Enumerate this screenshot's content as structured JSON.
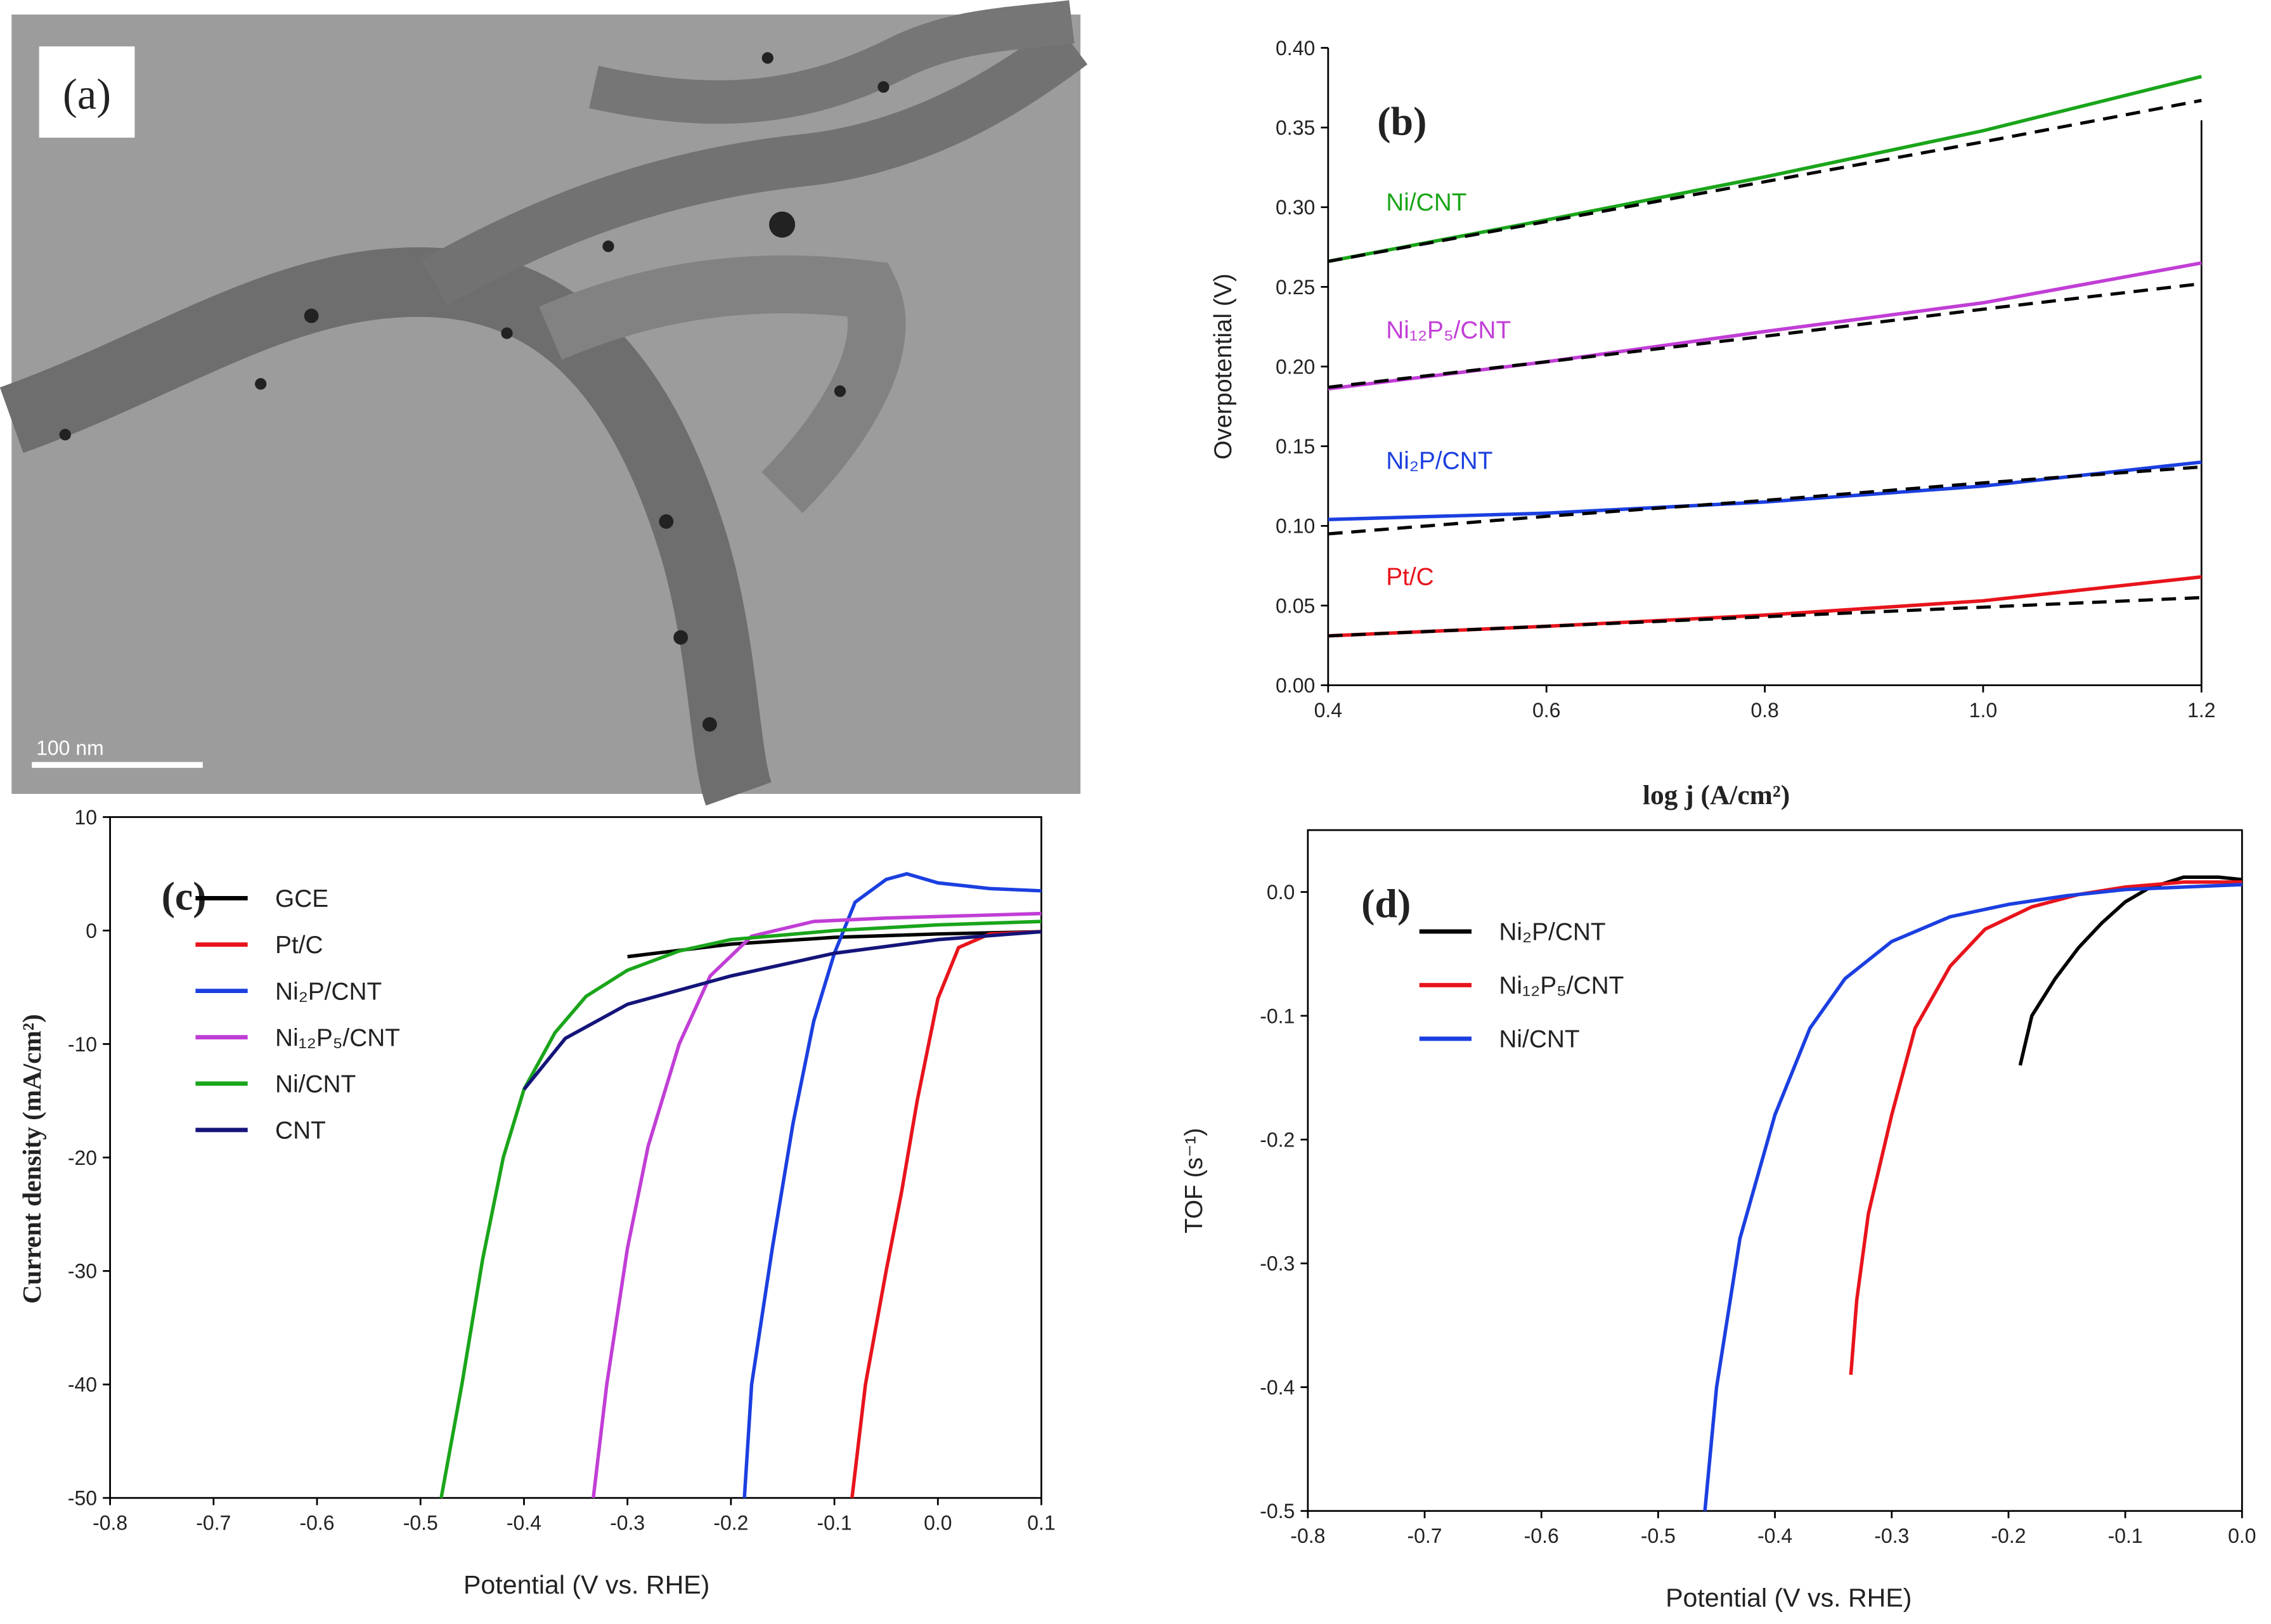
{
  "chart_data": [
    {
      "type": "image",
      "label": "(a)",
      "scale_bar": "100 nm"
    },
    {
      "type": "line",
      "label": "(b)",
      "xlabel": "log j (A/cm²)",
      "ylabel": "Overpotential (V)",
      "xlim": [
        0.4,
        1.2
      ],
      "ylim": [
        0,
        0.4
      ],
      "xticks": [
        0.4,
        0.6,
        0.8,
        {
          "value": 1,
          "label": "1.0"
        },
        1.2
      ],
      "yticks": [
        {
          "value": 0,
          "label": "0.00"
        },
        0.05,
        {
          "value": 0.1,
          "label": "0.10"
        },
        0.15,
        {
          "value": 0.2,
          "label": "0.20"
        },
        0.25,
        {
          "value": 0.3,
          "label": "0.30"
        },
        0.35,
        {
          "value": 0.4,
          "label": "0.40"
        }
      ],
      "legend": "inline",
      "x": [
        0.4,
        0.6,
        0.8,
        1.0,
        1.2
      ],
      "series": [
        {
          "name": "Ni/CNT",
          "color": "#1aa51a",
          "values": [
            0.266,
            0.292,
            0.319,
            0.348,
            0.382
          ]
        },
        {
          "color": "#000000",
          "dashed": true,
          "values": [
            0.266,
            0.291,
            0.316,
            0.341,
            0.367
          ]
        },
        {
          "name": "Ni₁₂P₅/CNT",
          "color": "#c13ed6",
          "values": [
            0.186,
            0.203,
            0.222,
            0.24,
            0.265
          ]
        },
        {
          "color": "#000000",
          "dashed": true,
          "values": [
            0.187,
            0.203,
            0.219,
            0.236,
            0.252
          ]
        },
        {
          "name": "Ni₂P/CNT",
          "color": "#1b3fe0",
          "values": [
            0.104,
            0.108,
            0.115,
            0.125,
            0.14
          ]
        },
        {
          "color": "#000000",
          "dashed": true,
          "values": [
            0.095,
            0.106,
            0.116,
            0.127,
            0.137
          ]
        },
        {
          "name": "Pt/C",
          "color": "#e8141c",
          "values": [
            0.031,
            0.037,
            0.044,
            0.053,
            0.068
          ]
        },
        {
          "color": "#000000",
          "dashed": true,
          "values": [
            0.031,
            0.037,
            0.043,
            0.049,
            0.055
          ]
        }
      ]
    },
    {
      "type": "line",
      "label": "(c)",
      "xlabel": "Potential (V vs. RHE)",
      "ylabel": "Current density (mA/cm²)",
      "xlim": [
        -0.8,
        0.1
      ],
      "ylim": [
        -50,
        10
      ],
      "xticks": [
        -0.8,
        -0.7,
        -0.6,
        -0.5,
        -0.4,
        -0.3,
        -0.2,
        -0.1,
        {
          "value": 0,
          "label": "0.0"
        },
        0.1
      ],
      "yticks": [
        -50,
        -40,
        -30,
        -20,
        -10,
        0,
        10
      ],
      "legend": "upper left",
      "series": [
        {
          "name": "GCE",
          "color": "#000000",
          "x": [
            -0.3,
            -0.2,
            -0.1,
            0,
            0.1
          ],
          "values": [
            -2.3,
            -1.2,
            -0.6,
            -0.3,
            -0.1
          ]
        },
        {
          "name": "Pt/C",
          "color": "#e8141c",
          "x": [
            -0.083,
            -0.07,
            -0.05,
            -0.035,
            -0.02,
            0,
            0.02,
            0.05,
            0.1
          ],
          "values": [
            -50,
            -40,
            -30,
            -23,
            -15,
            -6,
            -1.5,
            -0.3,
            -0.1
          ]
        },
        {
          "name": "Ni₂P/CNT",
          "color": "#1b3fe0",
          "x": [
            -0.187,
            -0.18,
            -0.16,
            -0.14,
            -0.12,
            -0.1,
            -0.08,
            -0.05,
            -0.03,
            0,
            0.05,
            0.1
          ],
          "values": [
            -50,
            -40,
            -28,
            -17,
            -8,
            -2,
            2.5,
            4.5,
            5,
            4.2,
            3.7,
            3.5
          ]
        },
        {
          "name": "Ni₁₂P₅/CNT",
          "color": "#c13ed6",
          "x": [
            -0.333,
            -0.32,
            -0.3,
            -0.28,
            -0.25,
            -0.22,
            -0.18,
            -0.12,
            -0.05,
            0.1
          ],
          "values": [
            -50,
            -40,
            -28,
            -19,
            -10,
            -4,
            -0.5,
            0.8,
            1.1,
            1.5
          ]
        },
        {
          "name": "Ni/CNT",
          "color": "#1aa51a",
          "x": [
            -0.48,
            -0.46,
            -0.44,
            -0.42,
            -0.4,
            -0.37,
            -0.34,
            -0.3,
            -0.25,
            -0.2,
            -0.1,
            0,
            0.1
          ],
          "values": [
            -50,
            -40,
            -29,
            -20,
            -14,
            -9,
            -5.8,
            -3.5,
            -1.8,
            -0.8,
            0,
            0.5,
            0.8
          ]
        },
        {
          "name": "CNT",
          "color": "#14147a",
          "x": [
            -0.4,
            -0.36,
            -0.3,
            -0.2,
            -0.1,
            0,
            0.1
          ],
          "values": [
            -14,
            -9.5,
            -6.5,
            -4,
            -2,
            -0.8,
            -0.1
          ]
        }
      ]
    },
    {
      "type": "line",
      "label": "(d)",
      "xlabel": "Potential (V vs. RHE)",
      "ylabel": "TOF (s⁻¹)",
      "xlim": [
        -0.8,
        0
      ],
      "ylim": [
        -0.5,
        0.05
      ],
      "xticks": [
        -0.8,
        -0.7,
        -0.6,
        -0.5,
        -0.4,
        -0.3,
        -0.2,
        -0.1,
        {
          "value": 0,
          "label": "0.0"
        }
      ],
      "yticks": [
        -0.5,
        -0.4,
        -0.3,
        -0.2,
        -0.1,
        {
          "value": 0,
          "label": "0.0"
        }
      ],
      "legend": "upper left",
      "series": [
        {
          "name": "Ni₂P/CNT",
          "color": "#000000",
          "x": [
            -0.19,
            -0.18,
            -0.16,
            -0.14,
            -0.12,
            -0.1,
            -0.08,
            -0.05,
            -0.02,
            0
          ],
          "values": [
            -0.14,
            -0.1,
            -0.07,
            -0.045,
            -0.025,
            -0.008,
            0.003,
            0.012,
            0.012,
            0.01
          ]
        },
        {
          "name": "Ni₁₂P₅/CNT",
          "color": "#e8141c",
          "x": [
            -0.335,
            -0.33,
            -0.32,
            -0.3,
            -0.28,
            -0.25,
            -0.22,
            -0.18,
            -0.14,
            -0.1,
            -0.05,
            0
          ],
          "values": [
            -0.39,
            -0.33,
            -0.26,
            -0.18,
            -0.11,
            -0.06,
            -0.03,
            -0.012,
            -0.002,
            0.004,
            0.008,
            0.008
          ]
        },
        {
          "name": "Ni/CNT",
          "color": "#1b3fe0",
          "x": [
            -0.46,
            -0.45,
            -0.43,
            -0.4,
            -0.37,
            -0.34,
            -0.3,
            -0.25,
            -0.2,
            -0.15,
            -0.1,
            0
          ],
          "values": [
            -0.5,
            -0.4,
            -0.28,
            -0.18,
            -0.11,
            -0.07,
            -0.04,
            -0.02,
            -0.01,
            -0.003,
            0.002,
            0.006
          ]
        }
      ]
    }
  ]
}
